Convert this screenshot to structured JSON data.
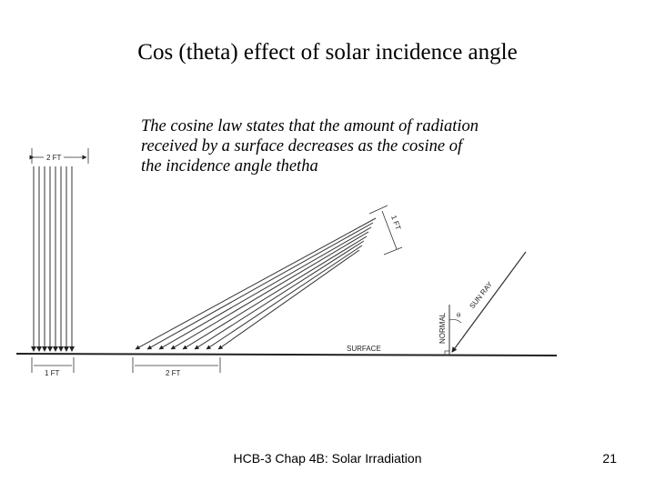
{
  "slide": {
    "title": "Cos (theta) effect of solar incidence angle",
    "note_lines": [
      "The cosine law states that the amount of radiation",
      "received by a surface decreases as the cosine of",
      "the incidence angle thetha"
    ],
    "footer": "HCB-3 Chap 4B: Solar Irradiation",
    "page_number": "21"
  },
  "diagram": {
    "label_top_width": "2 FT",
    "label_bottom_left": "1 FT",
    "label_bottom_right": "2 FT",
    "label_slanted_width": "1 FT",
    "label_surface": "SURFACE",
    "label_normal": "NORMAL",
    "label_sun_ray": "SUN RAY",
    "label_theta": "θ"
  }
}
